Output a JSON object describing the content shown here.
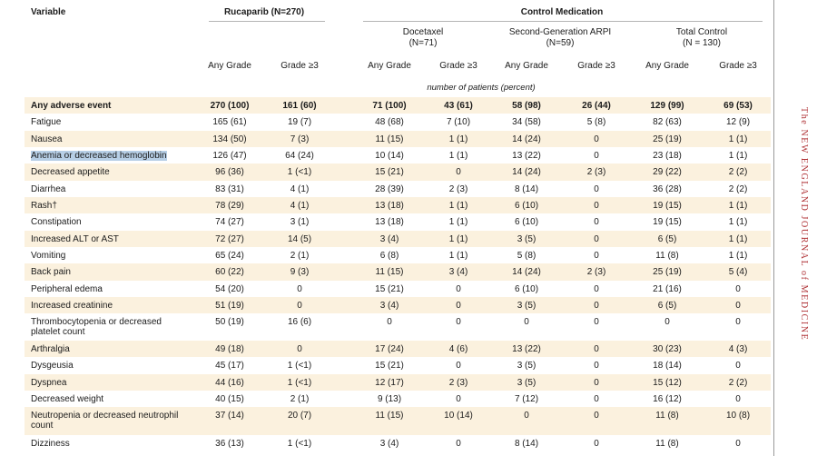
{
  "header": {
    "variable": "Variable",
    "rucaparib": "Rucaparib (N=270)",
    "control": "Control Medication",
    "docetaxel": [
      "Docetaxel",
      "(N=71)"
    ],
    "arpi": [
      "Second-Generation ARPI",
      "(N=59)"
    ],
    "total": [
      "Total Control",
      "(N = 130)"
    ],
    "any_grade": "Any Grade",
    "grade3": "Grade ≥3",
    "unit": "number of patients (percent)"
  },
  "rows": [
    {
      "label": "Any adverse event",
      "bold": true,
      "cells": [
        "270 (100)",
        "161 (60)",
        "71 (100)",
        "43 (61)",
        "58 (98)",
        "26 (44)",
        "129 (99)",
        "69 (53)"
      ]
    },
    {
      "label": "Fatigue",
      "cells": [
        "165 (61)",
        "19 (7)",
        "48 (68)",
        "7 (10)",
        "34 (58)",
        "5 (8)",
        "82 (63)",
        "12 (9)"
      ]
    },
    {
      "label": "Nausea",
      "cells": [
        "134 (50)",
        "7 (3)",
        "11 (15)",
        "1 (1)",
        "14 (24)",
        "0",
        "25 (19)",
        "1 (1)"
      ]
    },
    {
      "label": "Anemia or decreased hemoglobin",
      "highlight": true,
      "cells": [
        "126 (47)",
        "64 (24)",
        "10 (14)",
        "1 (1)",
        "13 (22)",
        "0",
        "23 (18)",
        "1 (1)"
      ]
    },
    {
      "label": "Decreased appetite",
      "cells": [
        "96 (36)",
        "1 (<1)",
        "15 (21)",
        "0",
        "14 (24)",
        "2 (3)",
        "29 (22)",
        "2 (2)"
      ]
    },
    {
      "label": "Diarrhea",
      "cells": [
        "83 (31)",
        "4 (1)",
        "28 (39)",
        "2 (3)",
        "8 (14)",
        "0",
        "36 (28)",
        "2 (2)"
      ]
    },
    {
      "label": "Rash†",
      "cells": [
        "78 (29)",
        "4 (1)",
        "13 (18)",
        "1 (1)",
        "6 (10)",
        "0",
        "19 (15)",
        "1 (1)"
      ]
    },
    {
      "label": "Constipation",
      "cells": [
        "74 (27)",
        "3 (1)",
        "13 (18)",
        "1 (1)",
        "6 (10)",
        "0",
        "19 (15)",
        "1 (1)"
      ]
    },
    {
      "label": "Increased ALT or AST",
      "cells": [
        "72 (27)",
        "14 (5)",
        "3 (4)",
        "1 (1)",
        "3 (5)",
        "0",
        "6 (5)",
        "1 (1)"
      ]
    },
    {
      "label": "Vomiting",
      "cells": [
        "65 (24)",
        "2 (1)",
        "6 (8)",
        "1 (1)",
        "5 (8)",
        "0",
        "11 (8)",
        "1 (1)"
      ]
    },
    {
      "label": "Back pain",
      "cells": [
        "60 (22)",
        "9 (3)",
        "11 (15)",
        "3 (4)",
        "14 (24)",
        "2 (3)",
        "25 (19)",
        "5 (4)"
      ]
    },
    {
      "label": "Peripheral edema",
      "cells": [
        "54 (20)",
        "0",
        "15 (21)",
        "0",
        "6 (10)",
        "0",
        "21 (16)",
        "0"
      ]
    },
    {
      "label": "Increased creatinine",
      "cells": [
        "51 (19)",
        "0",
        "3 (4)",
        "0",
        "3 (5)",
        "0",
        "6 (5)",
        "0"
      ]
    },
    {
      "label": "Thrombocytopenia or decreased platelet count",
      "cells": [
        "50 (19)",
        "16 (6)",
        "0",
        "0",
        "0",
        "0",
        "0",
        "0"
      ]
    },
    {
      "label": "Arthralgia",
      "cells": [
        "49 (18)",
        "0",
        "17 (24)",
        "4 (6)",
        "13 (22)",
        "0",
        "30 (23)",
        "4 (3)"
      ]
    },
    {
      "label": "Dysgeusia",
      "cells": [
        "45 (17)",
        "1 (<1)",
        "15 (21)",
        "0",
        "3 (5)",
        "0",
        "18 (14)",
        "0"
      ]
    },
    {
      "label": "Dyspnea",
      "cells": [
        "44 (16)",
        "1 (<1)",
        "12 (17)",
        "2 (3)",
        "3 (5)",
        "0",
        "15 (12)",
        "2 (2)"
      ]
    },
    {
      "label": "Decreased weight",
      "cells": [
        "40 (15)",
        "2 (1)",
        "9 (13)",
        "0",
        "7 (12)",
        "0",
        "16 (12)",
        "0"
      ]
    },
    {
      "label": "Neutropenia or decreased neutrophil count",
      "cells": [
        "37 (14)",
        "20 (7)",
        "11 (15)",
        "10 (14)",
        "0",
        "0",
        "11 (8)",
        "10 (8)"
      ]
    },
    {
      "label": "Dizziness",
      "cells": [
        "36 (13)",
        "1 (<1)",
        "3 (4)",
        "0",
        "8 (14)",
        "0",
        "11 (8)",
        "0"
      ]
    }
  ],
  "journal": "The NEW ENGLAND JOURNAL of MEDICINE"
}
